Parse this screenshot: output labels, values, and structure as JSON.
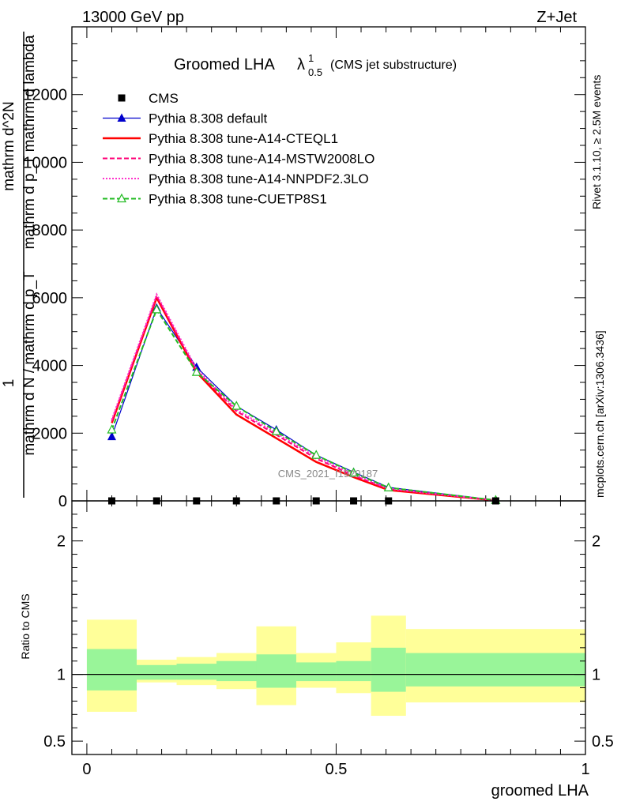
{
  "header": {
    "left": "13000 GeV pp",
    "right": "Z+Jet"
  },
  "title": {
    "main": "Groomed LHA",
    "lambda": "λ",
    "sup": "1",
    "sub": "0.5",
    "paren": "(CMS jet substructure)"
  },
  "side_labels": {
    "rivet": "Rivet 3.1.10, ≥ 2.5M events",
    "mcplots": "mcplots.cern.ch [arXiv:1306.3436]"
  },
  "watermark": "CMS_2021_I1920187",
  "ylabel_main": {
    "one": "1",
    "denom": "mathrm d N / mathrm d p_T",
    "numer_top": "mathrm d^2N",
    "numer_bot": "mathrm d p_T mathrm d lambda"
  },
  "ratio_ylabel": "Ratio to CMS",
  "xlabel": "groomed LHA",
  "colors": {
    "cms": "#000000",
    "default": "#0000cc",
    "cteql1": "#ff0000",
    "mstw": "#ff0077",
    "nnpdf": "#ff33cc",
    "cuetp8s1": "#22bb22",
    "band_inner": "#99f599",
    "band_outer": "#ffff99"
  },
  "chart_data": [
    {
      "type": "line",
      "xlim": [
        -0.03,
        1.0
      ],
      "ylim": [
        0,
        14000
      ],
      "yticks": [
        0,
        2000,
        4000,
        6000,
        8000,
        10000,
        12000
      ],
      "ytick_labels": [
        "0",
        "2000",
        "4000",
        "6000",
        "8000",
        "10000",
        "12000"
      ],
      "x": [
        0.05,
        0.14,
        0.22,
        0.3,
        0.38,
        0.46,
        0.535,
        0.605,
        0.82
      ],
      "series": [
        {
          "name": "CMS",
          "key": "cms",
          "marker": "square",
          "style": "none",
          "values": [
            0,
            0,
            0,
            0,
            0,
            0,
            0,
            0,
            0
          ]
        },
        {
          "name": "Pythia 8.308 default",
          "key": "default",
          "marker": "triangle",
          "style": "solid",
          "values": [
            1900,
            5700,
            3950,
            2800,
            2100,
            1350,
            850,
            400,
            20
          ]
        },
        {
          "name": "Pythia 8.308 tune-A14-CTEQL1",
          "key": "cteql1",
          "marker": "none",
          "style": "thick",
          "values": [
            2300,
            6000,
            3800,
            2550,
            1850,
            1150,
            700,
            320,
            15
          ]
        },
        {
          "name": "Pythia 8.308 tune-A14-MSTW2008LO",
          "key": "mstw",
          "marker": "none",
          "style": "dashed",
          "values": [
            2350,
            6050,
            3850,
            2650,
            1950,
            1250,
            750,
            350,
            15
          ]
        },
        {
          "name": "Pythia 8.308 tune-A14-NNPDF2.3LO",
          "key": "nnpdf",
          "marker": "none",
          "style": "dotted",
          "values": [
            2400,
            6100,
            3900,
            2700,
            2000,
            1300,
            780,
            360,
            15
          ]
        },
        {
          "name": "Pythia 8.308 tune-CUETP8S1",
          "key": "cuetp8s1",
          "marker": "open-triangle",
          "style": "dashed",
          "values": [
            2100,
            5650,
            3800,
            2800,
            2050,
            1350,
            830,
            390,
            20
          ]
        }
      ]
    },
    {
      "type": "area",
      "xlim": [
        -0.03,
        1.0
      ],
      "ylim": [
        0.4,
        2.3
      ],
      "yticks": [
        0.5,
        1,
        2
      ],
      "ytick_labels": [
        "0.5",
        "1",
        "2"
      ],
      "xticks": [
        0,
        0.5,
        1
      ],
      "xtick_labels": [
        "0",
        "0.5",
        "1"
      ],
      "bin_edges": [
        0.0,
        0.1,
        0.18,
        0.26,
        0.34,
        0.42,
        0.5,
        0.57,
        0.64,
        1.0
      ],
      "inner_lo": [
        0.88,
        0.96,
        0.96,
        0.95,
        0.9,
        0.95,
        0.95,
        0.87,
        0.91
      ],
      "inner_hi": [
        1.19,
        1.07,
        1.08,
        1.1,
        1.15,
        1.09,
        1.1,
        1.2,
        1.16
      ],
      "outer_lo": [
        0.72,
        0.94,
        0.92,
        0.89,
        0.77,
        0.9,
        0.86,
        0.69,
        0.79
      ],
      "outer_hi": [
        1.41,
        1.11,
        1.13,
        1.16,
        1.36,
        1.16,
        1.24,
        1.44,
        1.34
      ],
      "ref": 1
    }
  ]
}
